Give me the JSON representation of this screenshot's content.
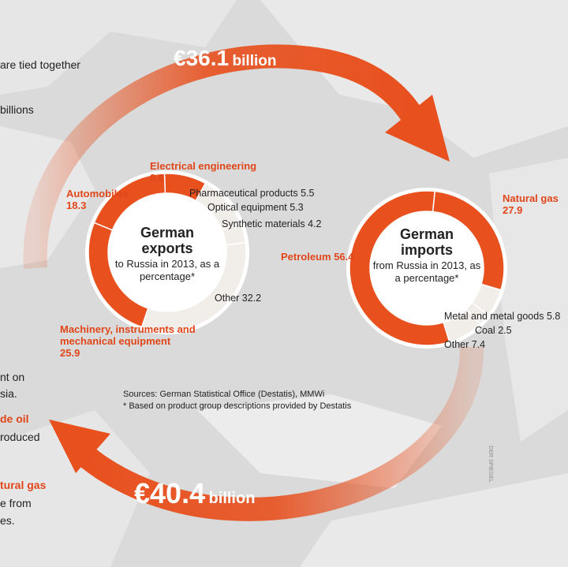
{
  "chart_data": [
    {
      "type": "pie",
      "title": "German exports",
      "subtitle": "to Russia in 2013, as a percentage*",
      "categories": [
        "Electrical engineering",
        "Pharmaceutical products",
        "Optical equipment",
        "Synthetic materials",
        "Other",
        "Machinery, instruments and mechanical equipment",
        "Automobiles"
      ],
      "values": [
        8.6,
        5.5,
        5.3,
        4.2,
        32.2,
        25.9,
        18.3
      ],
      "colors": [
        "#e8501e",
        "#f1eee9",
        "#f1eee9",
        "#f1eee9",
        "#f1eee9",
        "#e8501e",
        "#e8501e"
      ]
    },
    {
      "type": "pie",
      "title": "German imports",
      "subtitle": "from Russia in 2013, as a percentage*",
      "categories": [
        "Natural gas",
        "Metal and metal goods",
        "Coal",
        "Other",
        "Petroleum"
      ],
      "values": [
        27.9,
        5.8,
        2.5,
        7.4,
        56.4
      ],
      "colors": [
        "#e8501e",
        "#f1eee9",
        "#f1eee9",
        "#f1eee9",
        "#e8501e"
      ]
    }
  ],
  "flows": [
    {
      "amount": "€36.1",
      "unit": "billion"
    },
    {
      "amount": "€40.4",
      "unit": "billion"
    }
  ],
  "sources": [
    "Sources: German Statistical Office (Destatis), MMWi",
    "* Based on product group descriptions provided by Destatis"
  ],
  "credit": "DER SPIEGEL",
  "side_text": [
    "are tied together",
    "billions",
    "nt on",
    "sia.",
    "de oil",
    "roduced",
    "tural gas",
    "e from",
    "es."
  ]
}
